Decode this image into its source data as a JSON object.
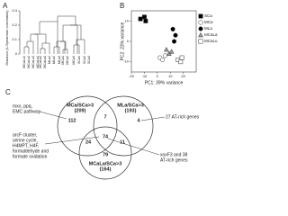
{
  "panel_a": {
    "label": "A",
    "y_axis_title": "Distance (1-Spearman correlation)",
    "ylim": [
      0,
      0.3
    ],
    "yticks": [
      0,
      0.1,
      0.2,
      0.3
    ],
    "leaves": [
      "MCaLu1",
      "MCaLu2",
      "MCaLu3",
      "MCaLa1",
      "MCaLa2",
      "MCaLa3",
      "MLa1",
      "MLa2",
      "MLa3",
      "MCa1",
      "MCa2",
      "MCa3",
      "SCa1",
      "SCa2",
      "SCa3"
    ]
  },
  "chart_data": {
    "type": "scatter",
    "panel_label": "B",
    "x_label": "PC1: 39% variance",
    "y_label": "PC2: 23% variance",
    "xlim": [
      -20,
      30
    ],
    "ylim": [
      -15,
      15
    ],
    "xticks": [
      -20,
      -10,
      0,
      10,
      20
    ],
    "yticks": [
      -10,
      0,
      10
    ],
    "legend": "right",
    "series": [
      {
        "name": "SCa",
        "color": "#000000",
        "marker": "square",
        "x": [
          -13,
          -10,
          -9
        ],
        "y": [
          11,
          12,
          10
        ]
      },
      {
        "name": "MCa",
        "color": "#ffffff",
        "marker": "circle",
        "x": [
          2,
          4,
          6
        ],
        "y": [
          -8,
          -9,
          -7
        ]
      },
      {
        "name": "MLa",
        "color": "#000000",
        "marker": "circle",
        "x": [
          12,
          14,
          13
        ],
        "y": [
          6,
          3,
          0
        ]
      },
      {
        "name": "MCaLa",
        "color": "#999999",
        "marker": "triangle",
        "x": [
          7,
          9,
          11
        ],
        "y": [
          -4,
          -6,
          -5
        ]
      },
      {
        "name": "MCaLu",
        "color": "#ffffff",
        "marker": "square",
        "x": [
          16,
          18,
          19
        ],
        "y": [
          -9,
          -10,
          -8
        ]
      }
    ]
  },
  "panel_c": {
    "label": "C",
    "sets": [
      {
        "title": "MCa/SCa>3",
        "count": "(209)"
      },
      {
        "title": "MLa/SCa>3",
        "count": "(193)"
      },
      {
        "title": "MCaLa/SCa>3",
        "count": "(164)"
      }
    ],
    "regions": [
      112,
      4,
      7,
      74,
      24,
      11,
      79
    ],
    "notes": [
      "mxo, ppq,",
      "EMC pathway",
      "arcF cluster,",
      "serine cycle,",
      "H4MPT, H4F,",
      "formaldehyde and",
      "formate oxidation",
      "27 AT-rich genes",
      "xoxF3 and 38",
      "AT-rich genes"
    ]
  }
}
